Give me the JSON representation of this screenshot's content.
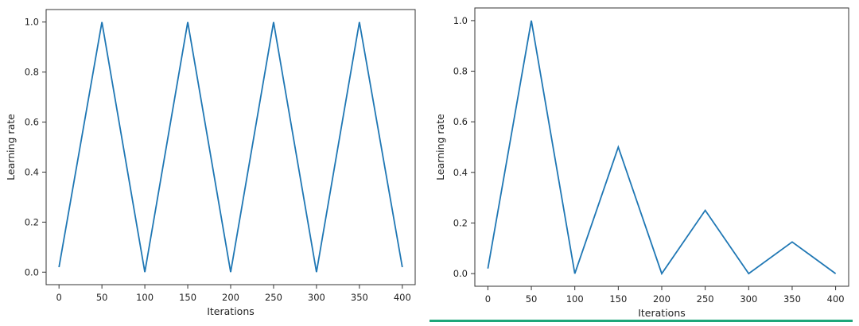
{
  "colors": {
    "line": "#1f77b4",
    "accent": "#1ea67a"
  },
  "chart_data": [
    {
      "type": "line",
      "xlabel": "Iterations",
      "ylabel": "Learning rate",
      "xlim": [
        -15,
        415
      ],
      "ylim": [
        -0.05,
        1.05
      ],
      "xticks": [
        0,
        50,
        100,
        150,
        200,
        250,
        300,
        350,
        400
      ],
      "yticks": [
        0.0,
        0.2,
        0.4,
        0.6,
        0.8,
        1.0
      ],
      "xtick_labels": [
        "0",
        "50",
        "100",
        "150",
        "200",
        "250",
        "300",
        "350",
        "400"
      ],
      "ytick_labels": [
        "0.0",
        "0.2",
        "0.4",
        "0.6",
        "0.8",
        "1.0"
      ],
      "grid": false,
      "series": [
        {
          "x": [
            0,
            50,
            100,
            150,
            200,
            250,
            300,
            350,
            400
          ],
          "y": [
            0.02,
            1.0,
            0.0,
            1.0,
            0.0,
            1.0,
            0.0,
            1.0,
            0.02
          ]
        }
      ]
    },
    {
      "type": "line",
      "xlabel": "Iterations",
      "ylabel": "Learning rate",
      "xlim": [
        -15,
        415
      ],
      "ylim": [
        -0.05,
        1.05
      ],
      "xticks": [
        0,
        50,
        100,
        150,
        200,
        250,
        300,
        350,
        400
      ],
      "yticks": [
        0.0,
        0.2,
        0.4,
        0.6,
        0.8,
        1.0
      ],
      "xtick_labels": [
        "0",
        "50",
        "100",
        "150",
        "200",
        "250",
        "300",
        "350",
        "400"
      ],
      "ytick_labels": [
        "0.0",
        "0.2",
        "0.4",
        "0.6",
        "0.8",
        "1.0"
      ],
      "grid": false,
      "series": [
        {
          "x": [
            0,
            50,
            100,
            150,
            200,
            250,
            300,
            350,
            400
          ],
          "y": [
            0.02,
            1.0,
            0.0,
            0.5,
            0.0,
            0.25,
            0.0,
            0.125,
            0.0
          ]
        }
      ]
    }
  ]
}
